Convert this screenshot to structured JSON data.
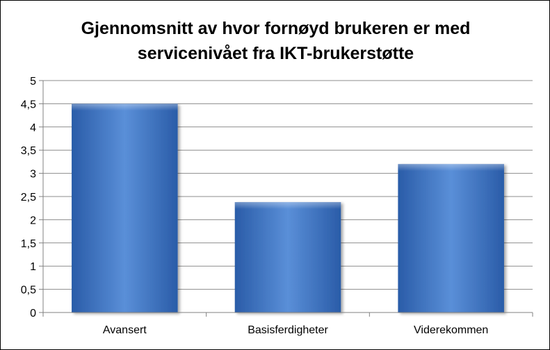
{
  "chart_data": {
    "type": "bar",
    "title_lines": [
      "Gjennomsnitt av hvor fornøyd brukeren er med",
      "servicenivået fra IKT-brukerstøtte"
    ],
    "categories": [
      "Avansert",
      "Basisferdigheter",
      "Viderekommen"
    ],
    "values": [
      4.5,
      2.38,
      3.2
    ],
    "y_ticks": [
      "0",
      "0,5",
      "1",
      "1,5",
      "2",
      "2,5",
      "3",
      "3,5",
      "4",
      "4,5",
      "5"
    ],
    "ylim": [
      0,
      5
    ],
    "grid": true,
    "legend": "none",
    "colors": {
      "bar_light": "#5a8fd8",
      "bar_mid": "#3f78c6",
      "bar_dark": "#2a5ca8",
      "grid": "#8c8c8c",
      "axis": "#808080"
    }
  }
}
